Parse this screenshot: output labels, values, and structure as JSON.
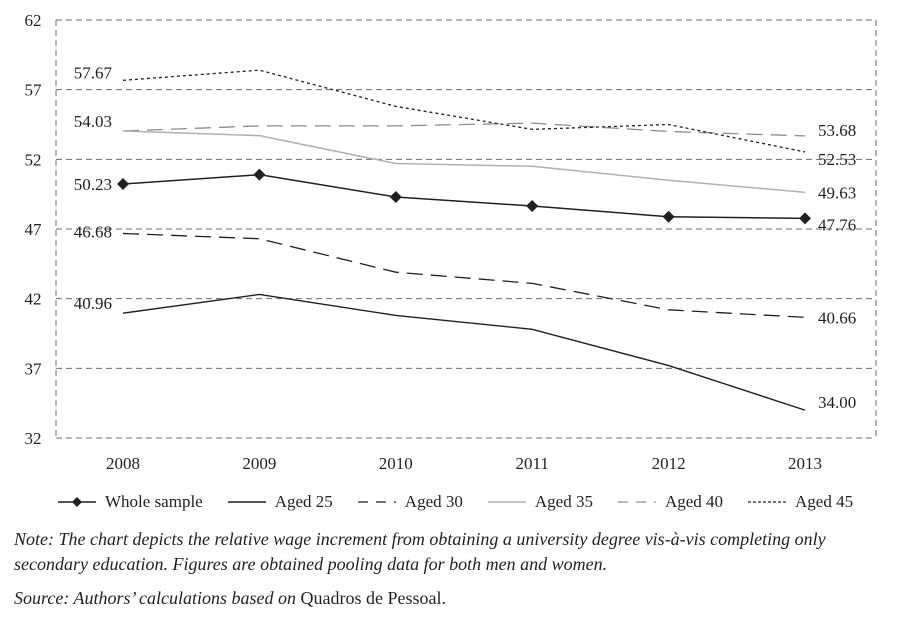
{
  "chart_data": {
    "type": "line",
    "title": "",
    "xlabel": "",
    "ylabel": "",
    "x": [
      "2008",
      "2009",
      "2010",
      "2011",
      "2012",
      "2013"
    ],
    "ylim": [
      32,
      62
    ],
    "yticks": [
      32,
      37,
      42,
      47,
      52,
      57,
      62
    ],
    "grid": true,
    "legend_position": "bottom",
    "series": [
      {
        "name": "Whole sample",
        "style": "solid-diamond",
        "color": "#231f20",
        "values": [
          50.23,
          50.9,
          49.3,
          48.65,
          47.88,
          47.76
        ],
        "start_label": "50.23",
        "end_label": "47.76"
      },
      {
        "name": "Aged 25",
        "style": "solid",
        "color": "#231f20",
        "values": [
          40.96,
          42.3,
          40.8,
          39.8,
          37.2,
          34.0
        ],
        "start_label": "40.96",
        "end_label": "34.00"
      },
      {
        "name": "Aged 30",
        "style": "long-dash",
        "color": "#231f20",
        "values": [
          46.68,
          46.3,
          43.9,
          43.1,
          41.2,
          40.66
        ],
        "start_label": "46.68",
        "end_label": "40.66"
      },
      {
        "name": "Aged 35",
        "style": "solid-light",
        "color": "#b0b0b0",
        "values": [
          54.03,
          53.7,
          51.7,
          51.5,
          50.5,
          49.63
        ],
        "start_label": "54.03",
        "end_label": "49.63"
      },
      {
        "name": "Aged 40",
        "style": "long-dash-light",
        "color": "#8c8c8c",
        "values": [
          54.03,
          54.4,
          54.4,
          54.6,
          54.0,
          53.68
        ],
        "start_label": "",
        "end_label": "53.68"
      },
      {
        "name": "Aged 45",
        "style": "dotted",
        "color": "#231f20",
        "values": [
          57.67,
          58.4,
          55.8,
          54.15,
          54.5,
          52.53
        ],
        "start_label": "57.67",
        "end_label": "52.53"
      }
    ]
  },
  "footer": {
    "note": "Note: The chart depicts the relative wage increment from obtaining a university degree vis-à-vis completing only secondary education. Figures are obtained pooling data for both men and women.",
    "source_prefix": "Source: Authors’ calculations based on ",
    "source_name": "Quadros de Pessoal",
    "source_suffix": "."
  },
  "colors": {
    "text": "#231f20",
    "grid": "#6d6d6d",
    "light_series": "#b0b0b0"
  }
}
